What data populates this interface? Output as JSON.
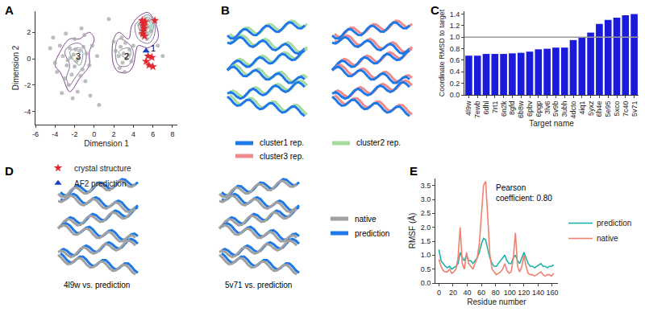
{
  "chart_data": [
    {
      "title": "A",
      "type": "scatter",
      "x_label": "Dimension 1",
      "y_label": "Dimension 2",
      "xlim": [
        -6,
        8.5
      ],
      "ylim": [
        -5,
        3.6
      ],
      "xticks": [
        -6,
        -4,
        -2,
        0,
        2,
        4,
        6,
        8
      ],
      "yticks": [
        -4,
        -2,
        0,
        2
      ],
      "grid": false,
      "legend": "bottom",
      "annotations": [
        "1",
        "2",
        "3"
      ],
      "series": [
        {
          "type": "density_contour",
          "marker": "circle",
          "color": "#a8a8a8",
          "x": [
            -2.1,
            -1.8,
            -2.5,
            -1.5,
            -2.8,
            -3.2,
            -1.2,
            -2.3,
            -0.8,
            -3.5,
            -2.0,
            -1.0,
            -4.0,
            -0.5,
            -2.6,
            -1.7,
            -3.0,
            -0.2,
            -4.5,
            -1.3,
            -2.9,
            -0.9,
            -3.8,
            -2.2,
            -1.6,
            -2.4,
            -1.9,
            -2.7,
            0.3,
            -3.3,
            -0.4,
            -4.2,
            -1.1,
            -2.0,
            -1.4,
            3.0,
            2.7,
            3.3,
            2.5,
            3.6,
            2.9,
            3.2,
            2.2,
            3.8,
            2.6,
            3.5,
            2.0,
            4.0,
            3.1,
            2.8,
            5.0,
            5.2,
            4.9,
            5.4,
            5.1,
            5.3,
            4.8,
            5.5,
            5.0,
            5.6,
            4.7,
            5.2,
            5.4,
            4.6,
            5.8,
            6.5,
            1.5,
            0.5,
            7.0
          ],
          "y": [
            0.3,
            -0.2,
            0.8,
            0.6,
            -0.5,
            0.2,
            -0.8,
            -1.2,
            0.4,
            1.0,
            1.5,
            1.8,
            -0.3,
            -0.5,
            -2.0,
            -2.5,
            -1.5,
            1.0,
            0.8,
            2.3,
            1.9,
            -1.7,
            -1.0,
            -3.0,
            0.0,
            0.1,
            0.7,
            -0.1,
            0.2,
            -2.6,
            -2.8,
            1.6,
            0.9,
            -0.6,
            -1.3,
            0.4,
            0.9,
            0.0,
            0.2,
            0.7,
            -0.3,
            1.2,
            0.6,
            -0.2,
            -0.7,
            0.3,
            1.3,
            1.0,
            -1.0,
            1.6,
            2.5,
            2.2,
            2.8,
            1.9,
            2.0,
            2.6,
            2.3,
            2.4,
            1.7,
            2.9,
            1.9,
            3.0,
            1.5,
            2.6,
            2.1,
            1.0,
            3.0,
            -3.5,
            0.2
          ]
        },
        {
          "name": "crystal structure",
          "marker": "star",
          "color": "#e3262d",
          "x": [
            4.9,
            5.0,
            5.05,
            5.1,
            5.0,
            4.95,
            5.15,
            5.2,
            6.2,
            5.3,
            5.6,
            5.9,
            5.5,
            6.0
          ],
          "y": [
            2.9,
            2.7,
            2.5,
            2.3,
            2.1,
            1.9,
            1.7,
            2.8,
            2.9,
            -0.2,
            -0.5,
            0.1,
            0.2,
            -0.6
          ]
        },
        {
          "name": "AF2 prediction",
          "marker": "triangle-up",
          "color": "#1c3fc4",
          "x": [
            5.3
          ],
          "y": [
            0.6
          ]
        }
      ]
    },
    {
      "title": "B",
      "type": "diagram",
      "legend_items": [
        {
          "name": "cluster1 rep.",
          "color": "#1e78e6"
        },
        {
          "name": "cluster2 rep.",
          "color": "#a6dba0"
        },
        {
          "name": "cluster3 rep.",
          "color": "#f08a8a"
        }
      ]
    },
    {
      "title": "C",
      "type": "bar",
      "x_label": "Target name",
      "y_label": "Coordinate RMSD to target",
      "categories": [
        "4l9w",
        "7ewb",
        "6dhl",
        "7rt1",
        "6n2k",
        "8gfd",
        "6b8w",
        "6pbv",
        "6pgp",
        "3lv6",
        "5v9b",
        "3ubh",
        "4dcto",
        "4iq1",
        "5yxz",
        "6h4e",
        "5e95",
        "5xco",
        "7c40",
        "5v71"
      ],
      "values": [
        0.68,
        0.68,
        0.71,
        0.71,
        0.71,
        0.72,
        0.73,
        0.75,
        0.79,
        0.8,
        0.82,
        0.82,
        0.95,
        1.0,
        1.08,
        1.23,
        1.3,
        1.34,
        1.38,
        1.4
      ],
      "color": "#1a1adb",
      "threshold": 1.0,
      "grid": false,
      "ylim": [
        0,
        1.45
      ],
      "yticks": [
        {
          "value": 0,
          "label": "0.0"
        },
        0.2,
        0.4,
        0.6,
        0.8,
        {
          "value": 1,
          "label": "1.0"
        },
        1.2,
        1.4
      ]
    },
    {
      "title": "D",
      "type": "diagram",
      "captions": [
        "4l9w vs. prediction",
        "5v71 vs. prediction"
      ],
      "legend_items": [
        {
          "name": "native",
          "color": "#a0a0a0"
        },
        {
          "name": "prediction",
          "color": "#1e78e6"
        }
      ]
    },
    {
      "title": "E",
      "type": "line",
      "x_label": "Residue number",
      "y_label": "RMSF (Å)",
      "annotations": [
        "Pearson\ncoefficient: 0.80"
      ],
      "legend": "right",
      "grid": false,
      "xlim": [
        -5,
        168
      ],
      "ylim": [
        0,
        3.75
      ],
      "xticks": [
        0,
        20,
        40,
        60,
        80,
        100,
        120,
        140,
        160
      ],
      "yticks": [
        {
          "value": 0,
          "label": "0.0"
        },
        0.5,
        {
          "value": 1,
          "label": "1.0"
        },
        1.5,
        {
          "value": 2,
          "label": "2.0"
        },
        2.5,
        {
          "value": 3,
          "label": "3.0"
        },
        3.5
      ],
      "x": [
        0,
        3,
        6,
        9,
        12,
        15,
        18,
        21,
        24,
        27,
        30,
        33,
        36,
        39,
        42,
        45,
        48,
        51,
        54,
        57,
        60,
        63,
        66,
        69,
        72,
        75,
        78,
        81,
        84,
        87,
        90,
        93,
        96,
        99,
        102,
        105,
        108,
        111,
        114,
        117,
        120,
        123,
        126,
        129,
        132,
        135,
        138,
        141,
        144,
        147,
        150,
        153,
        156,
        159,
        162
      ],
      "series": [
        {
          "name": "prediction",
          "color": "#20b2a6",
          "values": [
            1.2,
            0.8,
            0.7,
            0.6,
            0.55,
            0.6,
            0.5,
            0.55,
            0.6,
            0.7,
            1.1,
            0.9,
            0.8,
            1.0,
            0.8,
            0.8,
            0.7,
            0.8,
            0.9,
            1.1,
            1.4,
            1.6,
            1.55,
            1.2,
            0.9,
            0.7,
            0.6,
            0.6,
            0.7,
            0.8,
            0.9,
            1.0,
            0.8,
            0.7,
            0.7,
            0.9,
            1.0,
            0.8,
            0.7,
            0.9,
            1.1,
            0.9,
            0.7,
            0.6,
            0.6,
            0.55,
            0.6,
            0.65,
            0.7,
            0.6,
            0.6,
            0.55,
            0.6,
            0.6,
            0.65
          ]
        },
        {
          "name": "native",
          "color": "#f08070",
          "values": [
            0.85,
            0.6,
            0.45,
            0.4,
            0.4,
            0.5,
            0.35,
            0.4,
            0.5,
            0.9,
            2.0,
            0.7,
            0.5,
            1.1,
            0.7,
            0.6,
            0.5,
            0.7,
            0.9,
            1.4,
            2.5,
            3.5,
            3.65,
            2.4,
            1.0,
            0.5,
            0.4,
            0.3,
            0.35,
            0.4,
            0.5,
            0.7,
            0.45,
            0.35,
            0.4,
            0.9,
            1.8,
            0.6,
            0.4,
            0.6,
            1.0,
            0.6,
            0.35,
            0.3,
            0.3,
            0.25,
            0.3,
            0.35,
            0.4,
            0.3,
            0.25,
            0.3,
            0.3,
            0.25,
            0.35
          ]
        }
      ]
    }
  ]
}
